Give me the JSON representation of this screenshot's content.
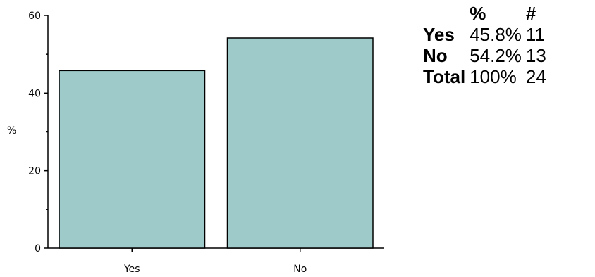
{
  "chart_data": {
    "type": "bar",
    "categories": [
      "Yes",
      "No"
    ],
    "values": [
      45.8,
      54.2
    ],
    "title": "",
    "xlabel": "",
    "ylabel": "%",
    "ylim": [
      0,
      60
    ],
    "yticks": [
      0,
      20,
      40,
      60
    ],
    "grid": false,
    "bar_color": "#9ecbc9",
    "bar_stroke": "#000000"
  },
  "summary_table": {
    "headers": [
      "",
      "%",
      "#"
    ],
    "rows": [
      {
        "label": "Yes",
        "percent": "45.8%",
        "count": "11"
      },
      {
        "label": "No",
        "percent": "54.2%",
        "count": "13"
      },
      {
        "label": "Total",
        "percent": "100%",
        "count": "24"
      }
    ]
  }
}
